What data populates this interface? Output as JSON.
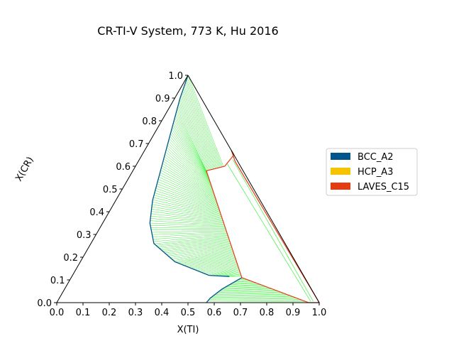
{
  "chart_data": {
    "type": "ternary",
    "title": "CR-TI-V System, 773 K, Hu 2016",
    "xlabel": "X(TI)",
    "ylabel": "X(CR)",
    "xlim": [
      0,
      1
    ],
    "ylim": [
      0,
      1
    ],
    "x_ticks": [
      "0.0",
      "0.1",
      "0.2",
      "0.3",
      "0.4",
      "0.5",
      "0.6",
      "0.7",
      "0.8",
      "0.9",
      "1.0"
    ],
    "y_ticks": [
      "0.0",
      "0.1",
      "0.2",
      "0.3",
      "0.4",
      "0.5",
      "0.6",
      "0.7",
      "0.8",
      "0.9",
      "1.0"
    ],
    "legend": {
      "placement": "center-right",
      "entries": [
        {
          "label": "BCC_A2",
          "color": "#00558a"
        },
        {
          "label": "HCP_A3",
          "color": "#f5c400"
        },
        {
          "label": "LAVES_C15",
          "color": "#e63a12"
        }
      ]
    },
    "tie_line_color": "#22ee22",
    "phase_boundaries": [
      {
        "phase": "BCC_A2",
        "comment_free_points": [
          {
            "x_ti": 0.0,
            "x_cr": 1.0
          },
          {
            "x_ti": 0.02,
            "x_cr": 0.9
          },
          {
            "x_ti": 0.06,
            "x_cr": 0.75
          },
          {
            "x_ti": 0.1,
            "x_cr": 0.6
          },
          {
            "x_ti": 0.14,
            "x_cr": 0.45
          },
          {
            "x_ti": 0.18,
            "x_cr": 0.35
          },
          {
            "x_ti": 0.24,
            "x_cr": 0.26
          },
          {
            "x_ti": 0.36,
            "x_cr": 0.18
          },
          {
            "x_ti": 0.52,
            "x_cr": 0.12
          },
          {
            "x_ti": 0.6,
            "x_cr": 0.115
          }
        ]
      },
      {
        "phase": "BCC_A2",
        "comment_free_points": [
          {
            "x_ti": 0.65,
            "x_cr": 0.11
          },
          {
            "x_ti": 0.6,
            "x_cr": 0.06
          },
          {
            "x_ti": 0.575,
            "x_cr": 0.02
          },
          {
            "x_ti": 0.57,
            "x_cr": 0.0
          }
        ]
      },
      {
        "phase": "LAVES_C15",
        "comment_free_points": [
          {
            "x_ti": 0.33,
            "x_cr": 0.67
          },
          {
            "x_ti": 0.35,
            "x_cr": 0.65
          },
          {
            "x_ti": 0.34,
            "x_cr": 0.6
          },
          {
            "x_ti": 0.28,
            "x_cr": 0.58
          },
          {
            "x_ti": 0.65,
            "x_cr": 0.11
          },
          {
            "x_ti": 0.96,
            "x_cr": 0.0
          },
          {
            "x_ti": 1.0,
            "x_cr": 0.0
          },
          {
            "x_ti": 0.37,
            "x_cr": 0.62
          },
          {
            "x_ti": 0.33,
            "x_cr": 0.67
          }
        ]
      }
    ]
  }
}
